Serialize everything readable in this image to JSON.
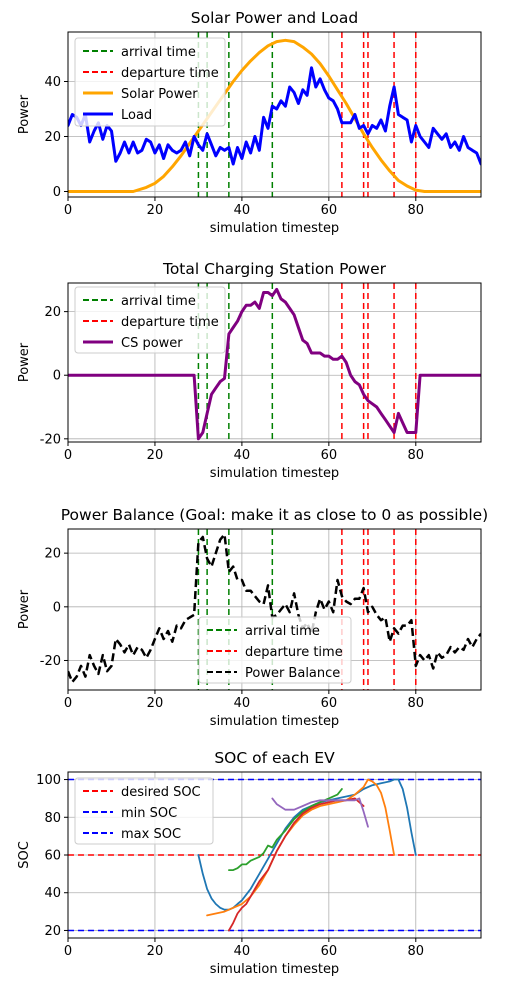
{
  "chart_data": [
    {
      "type": "line",
      "title": "Solar Power and Load",
      "xlabel": "simulation timestep",
      "ylabel": "Power",
      "xlim": [
        0,
        95
      ],
      "ylim": [
        -2,
        58
      ],
      "xticks": [
        0,
        20,
        40,
        60,
        80
      ],
      "yticks": [
        0,
        20,
        40
      ],
      "grid": true,
      "legend_position": "top-left",
      "legend": [
        {
          "label": "arrival time",
          "color": "#008000",
          "style": "dashed"
        },
        {
          "label": "departure time",
          "color": "#ff0000",
          "style": "dashed"
        },
        {
          "label": "Solar Power",
          "color": "#ffa500",
          "style": "solid"
        },
        {
          "label": "Load",
          "color": "#0000ff",
          "style": "solid"
        }
      ],
      "arrival_times": [
        30,
        32,
        37,
        47
      ],
      "departure_times": [
        63,
        68,
        69,
        75,
        80
      ],
      "series": [
        {
          "name": "Solar Power",
          "color": "#ffa500",
          "width": 3,
          "dash": "",
          "x": [
            0,
            5,
            10,
            15,
            18,
            20,
            22,
            24,
            26,
            28,
            30,
            32,
            34,
            36,
            38,
            40,
            42,
            44,
            46,
            48,
            50,
            52,
            54,
            56,
            58,
            60,
            62,
            64,
            66,
            68,
            70,
            72,
            74,
            76,
            78,
            80,
            82,
            84,
            86,
            88,
            90,
            95
          ],
          "values": [
            0,
            0,
            0,
            0,
            1.5,
            3,
            5.5,
            9,
            13,
            17.5,
            22,
            26.5,
            31,
            35.5,
            40,
            44,
            47.5,
            50.5,
            53,
            54.5,
            55,
            54.5,
            52.5,
            50,
            46.5,
            42,
            37,
            32,
            26.5,
            21,
            16,
            11.5,
            7.5,
            4,
            2,
            0.5,
            0,
            0,
            0,
            0,
            0,
            0
          ]
        },
        {
          "name": "Load",
          "color": "#0000ff",
          "width": 3,
          "dash": "",
          "x": [
            0,
            1,
            2,
            3,
            4,
            5,
            6,
            7,
            8,
            9,
            10,
            11,
            12,
            13,
            14,
            15,
            16,
            17,
            18,
            19,
            20,
            21,
            22,
            23,
            24,
            25,
            26,
            27,
            28,
            29,
            30,
            31,
            32,
            33,
            34,
            35,
            36,
            37,
            38,
            39,
            40,
            41,
            42,
            43,
            44,
            45,
            46,
            47,
            48,
            49,
            50,
            51,
            52,
            53,
            54,
            55,
            56,
            57,
            58,
            59,
            60,
            61,
            62,
            63,
            64,
            65,
            66,
            67,
            68,
            69,
            70,
            71,
            72,
            73,
            74,
            75,
            76,
            77,
            78,
            79,
            80,
            81,
            82,
            83,
            84,
            85,
            86,
            87,
            88,
            89,
            90,
            91,
            92,
            93,
            94,
            95
          ],
          "values": [
            24,
            28,
            27,
            24,
            28,
            18,
            22,
            25,
            19,
            24,
            22,
            11,
            14,
            18,
            14,
            18,
            14,
            15,
            19,
            18,
            14,
            17,
            12,
            17,
            15,
            14,
            15,
            18,
            13,
            20,
            17,
            15,
            21,
            17,
            13,
            16,
            15,
            16,
            10,
            16,
            12,
            18,
            14,
            20,
            15,
            27,
            23,
            31,
            30,
            33,
            31,
            38,
            36,
            32,
            37,
            35,
            45,
            38,
            41,
            37,
            34,
            33,
            30,
            25,
            25,
            25,
            28,
            23,
            24,
            21,
            24,
            23,
            26,
            22,
            31,
            38,
            28,
            27,
            26,
            18,
            24,
            20,
            18,
            16,
            23,
            21,
            19,
            21,
            16,
            18,
            15,
            20,
            16,
            15,
            14,
            10
          ]
        }
      ]
    },
    {
      "type": "line",
      "title": "Total Charging Station Power",
      "xlabel": "simulation timestep",
      "ylabel": "Power",
      "xlim": [
        0,
        95
      ],
      "ylim": [
        -21,
        29
      ],
      "xticks": [
        0,
        20,
        40,
        60,
        80
      ],
      "yticks": [
        -20,
        0,
        20
      ],
      "grid": true,
      "legend_position": "top-left",
      "legend": [
        {
          "label": "arrival time",
          "color": "#008000",
          "style": "dashed"
        },
        {
          "label": "departure time",
          "color": "#ff0000",
          "style": "dashed"
        },
        {
          "label": "CS power",
          "color": "#800080",
          "style": "solid"
        }
      ],
      "arrival_times": [
        30,
        32,
        37,
        47
      ],
      "departure_times": [
        63,
        68,
        69,
        75,
        80
      ],
      "series": [
        {
          "name": "CS power",
          "color": "#800080",
          "width": 3,
          "dash": "",
          "x": [
            0,
            29,
            30,
            31,
            32,
            33,
            34,
            35,
            36,
            37,
            38,
            39,
            40,
            41,
            42,
            43,
            44,
            45,
            46,
            47,
            48,
            49,
            50,
            51,
            52,
            53,
            54,
            55,
            56,
            57,
            58,
            59,
            60,
            61,
            62,
            63,
            64,
            65,
            66,
            67,
            68,
            69,
            70,
            71,
            72,
            73,
            74,
            75,
            76,
            77,
            78,
            79,
            80,
            81,
            95
          ],
          "values": [
            0,
            0,
            -20,
            -18,
            -12,
            -6,
            -4,
            -2,
            -1,
            13,
            15,
            17,
            20,
            22,
            22,
            23,
            21,
            26,
            26,
            25,
            27,
            24,
            23,
            21,
            19,
            15,
            11,
            10,
            7,
            7,
            7,
            6,
            6,
            5,
            5,
            6,
            4,
            0,
            -2,
            -3,
            -6,
            -8,
            -9,
            -10,
            -12,
            -14,
            -16,
            -18,
            -12,
            -15,
            -18,
            -18,
            -18,
            0,
            0
          ]
        }
      ]
    },
    {
      "type": "line",
      "title": "Power Balance (Goal: make it as close to 0 as possible)",
      "xlabel": "simulation timestep",
      "ylabel": "Power",
      "xlim": [
        0,
        95
      ],
      "ylim": [
        -31,
        29
      ],
      "xticks": [
        0,
        20,
        40,
        60,
        80
      ],
      "yticks": [
        -20,
        0,
        20
      ],
      "grid": true,
      "legend_position": "bottom-center",
      "legend": [
        {
          "label": "arrival time",
          "color": "#008000",
          "style": "dashed"
        },
        {
          "label": "departure time",
          "color": "#ff0000",
          "style": "dashed"
        },
        {
          "label": "Power Balance",
          "color": "#000000",
          "style": "dashed"
        }
      ],
      "arrival_times": [
        30,
        32,
        37,
        47
      ],
      "departure_times": [
        63,
        68,
        69,
        75,
        80
      ],
      "series": [
        {
          "name": "Power Balance",
          "color": "#000000",
          "width": 2.5,
          "dash": "8,4",
          "x": [
            0,
            1,
            2,
            3,
            4,
            5,
            6,
            7,
            8,
            9,
            10,
            11,
            12,
            13,
            14,
            15,
            16,
            17,
            18,
            19,
            20,
            21,
            22,
            23,
            24,
            25,
            26,
            27,
            28,
            29,
            30,
            31,
            32,
            33,
            34,
            35,
            36,
            37,
            38,
            39,
            40,
            41,
            42,
            43,
            44,
            45,
            46,
            47,
            48,
            49,
            50,
            51,
            52,
            53,
            54,
            55,
            56,
            57,
            58,
            59,
            60,
            61,
            62,
            63,
            64,
            65,
            66,
            67,
            68,
            69,
            70,
            71,
            72,
            73,
            74,
            75,
            76,
            77,
            78,
            79,
            80,
            81,
            82,
            83,
            84,
            85,
            86,
            87,
            88,
            89,
            90,
            91,
            92,
            93,
            94,
            95
          ],
          "values": [
            -24,
            -28,
            -26,
            -22,
            -26,
            -18,
            -22,
            -25,
            -18,
            -24,
            -22,
            -12,
            -14,
            -17,
            -14,
            -18,
            -15,
            -16,
            -19,
            -16,
            -12,
            -8,
            -12,
            -9,
            -13,
            -7,
            -8,
            -5,
            -4,
            -3,
            24,
            26,
            18,
            15,
            20,
            25,
            27,
            13,
            15,
            10,
            10,
            6,
            6,
            4,
            2,
            1,
            8,
            -4,
            -3,
            -1,
            1,
            -2,
            5,
            -3,
            -8,
            -6,
            -10,
            -2,
            3,
            -1,
            2,
            -2,
            10,
            4,
            2,
            1,
            3,
            3,
            7,
            -2,
            0,
            -3,
            -5,
            -4,
            -13,
            -8,
            -10,
            -7,
            -7,
            -5,
            -22,
            -18,
            -20,
            -18,
            -23,
            -17,
            -19,
            -18,
            -15,
            -17,
            -15,
            -16,
            -12,
            -15,
            -12,
            -10
          ]
        }
      ]
    },
    {
      "type": "line",
      "title": "SOC of each EV",
      "xlabel": "simulation timestep",
      "ylabel": "SOC",
      "xlim": [
        0,
        95
      ],
      "ylim": [
        16,
        104
      ],
      "xticks": [
        0,
        20,
        40,
        60,
        80
      ],
      "yticks": [
        20,
        40,
        60,
        80,
        100
      ],
      "grid": true,
      "legend_position": "top-left",
      "legend": [
        {
          "label": "desired SOC",
          "color": "#ff0000",
          "style": "dashed"
        },
        {
          "label": "min SOC",
          "color": "#0000ff",
          "style": "dashed"
        },
        {
          "label": "max SOC",
          "color": "#0000ff",
          "style": "dashed"
        }
      ],
      "hlines": [
        {
          "y": 60,
          "color": "#ff0000"
        },
        {
          "y": 20,
          "color": "#0000ff"
        },
        {
          "y": 100,
          "color": "#0000ff"
        }
      ],
      "series": [
        {
          "color": "#1f77b4",
          "width": 1.8,
          "dash": "",
          "x": [
            30,
            31,
            32,
            33,
            34,
            35,
            36,
            37,
            38,
            39,
            40,
            42,
            44,
            46,
            48,
            50,
            52,
            54,
            56,
            58,
            60,
            62,
            64,
            66,
            68,
            70,
            72,
            74,
            75,
            76,
            77,
            78,
            79,
            80
          ],
          "values": [
            60,
            50,
            42,
            37,
            34,
            32,
            31,
            31,
            32,
            34,
            36,
            42,
            50,
            58,
            66,
            74,
            80,
            84,
            86,
            88,
            89,
            90,
            91,
            92,
            95,
            97,
            98,
            99,
            100,
            100,
            95,
            85,
            72,
            60
          ]
        },
        {
          "color": "#ff7f0e",
          "width": 1.8,
          "dash": "",
          "x": [
            32,
            34,
            36,
            38,
            40,
            42,
            44,
            46,
            48,
            50,
            52,
            54,
            56,
            58,
            60,
            62,
            64,
            66,
            68,
            69,
            70,
            71,
            72,
            73,
            74,
            75
          ],
          "values": [
            28,
            29,
            30,
            32,
            34,
            38,
            44,
            52,
            62,
            70,
            76,
            81,
            84,
            86,
            87,
            88,
            89,
            92,
            96,
            100,
            99,
            97,
            93,
            85,
            73,
            60
          ]
        },
        {
          "color": "#2ca02c",
          "width": 1.8,
          "dash": "",
          "x": [
            37,
            38,
            39,
            40,
            41,
            42,
            43,
            44,
            45,
            46,
            47,
            48,
            50,
            52,
            54,
            56,
            58,
            60,
            62,
            63
          ],
          "values": [
            52,
            52,
            53,
            55,
            55,
            57,
            58,
            59,
            61,
            65,
            64,
            68,
            73,
            79,
            83,
            86,
            88,
            90,
            92,
            95
          ]
        },
        {
          "color": "#d62728",
          "width": 1.8,
          "dash": "",
          "x": [
            37,
            38,
            39,
            40,
            41,
            42,
            43,
            44,
            45,
            46,
            47,
            48,
            50,
            52,
            54,
            56,
            58,
            60,
            62,
            64,
            66,
            67,
            68
          ],
          "values": [
            20,
            24,
            29,
            32,
            34,
            38,
            42,
            46,
            49,
            52,
            57,
            62,
            70,
            77,
            82,
            85,
            87,
            88,
            89,
            89,
            90,
            88,
            86
          ]
        },
        {
          "color": "#9467bd",
          "width": 1.8,
          "dash": "",
          "x": [
            47,
            48,
            50,
            52,
            54,
            56,
            58,
            60,
            62,
            64,
            66,
            67,
            68,
            69
          ],
          "values": [
            90,
            87,
            84,
            84,
            86,
            88,
            89,
            89,
            89,
            89,
            89,
            90,
            83,
            75
          ]
        }
      ]
    }
  ]
}
